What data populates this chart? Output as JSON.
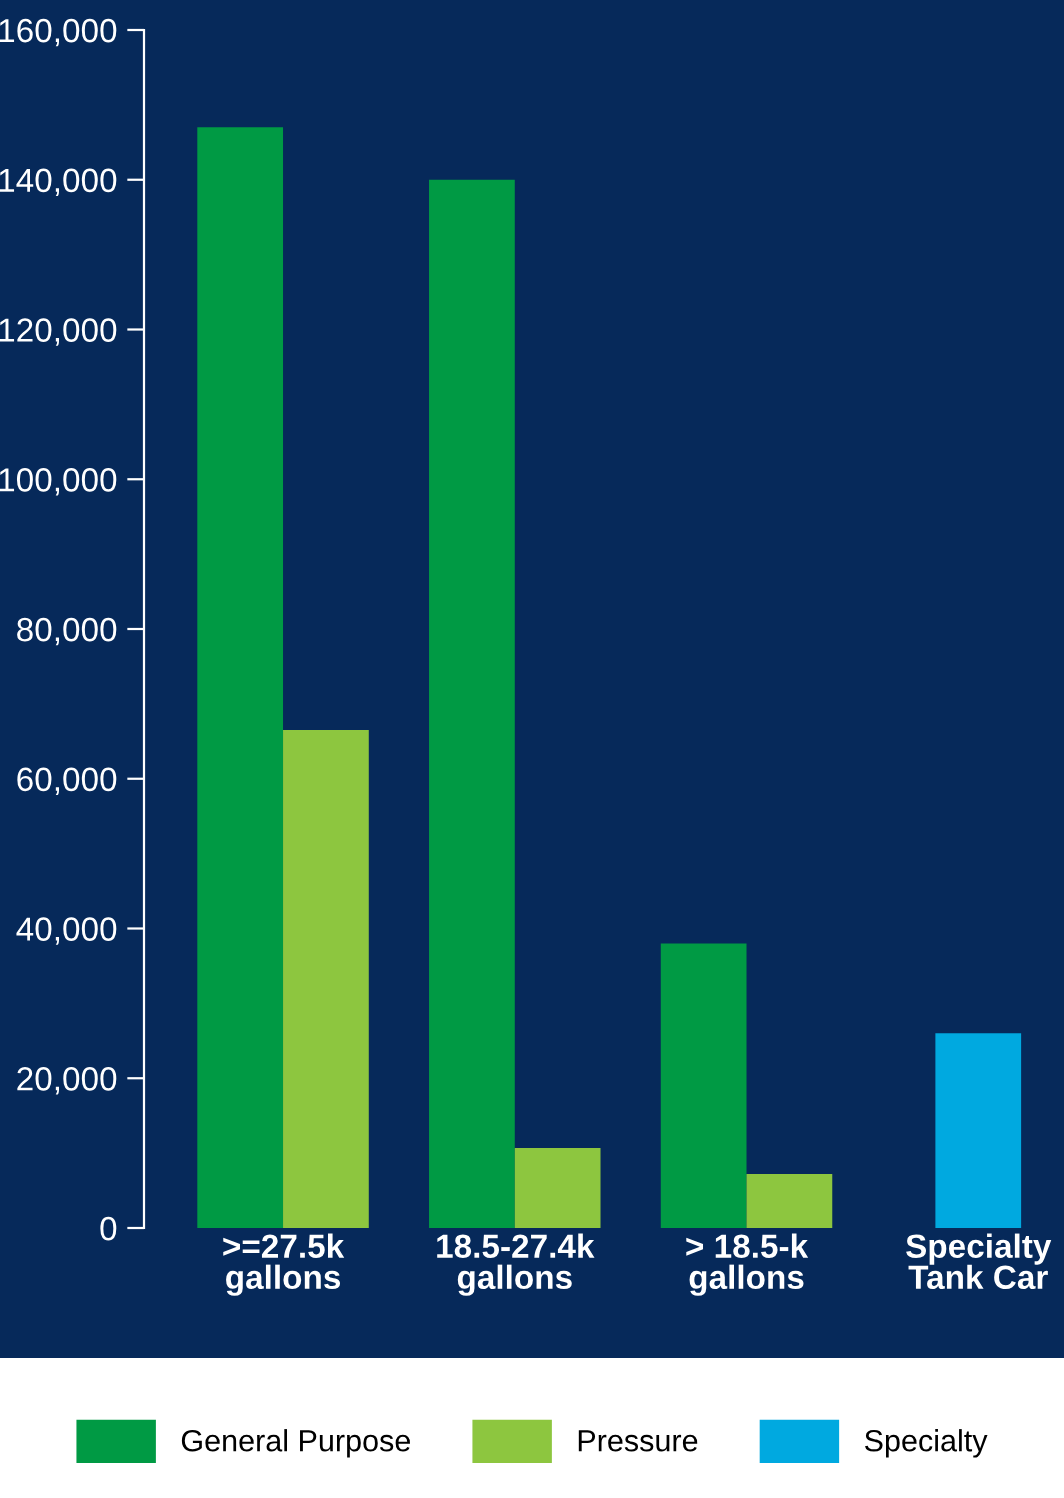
{
  "chart_data": {
    "type": "bar",
    "categories": [
      ">=27.5k\ngallons",
      "18.5-27.4k\ngallons",
      "> 18.5-k\ngallons",
      "Specialty\nTank Car"
    ],
    "series": [
      {
        "name": "General Purpose",
        "color": "#009a44",
        "values": [
          147000,
          140000,
          38000,
          null
        ]
      },
      {
        "name": "Pressure",
        "color": "#8dc63f",
        "values": [
          66500,
          10700,
          7200,
          null
        ]
      },
      {
        "name": "Specialty",
        "color": "#00a9e0",
        "values": [
          null,
          null,
          null,
          26000
        ]
      }
    ],
    "ylim": [
      0,
      160000
    ],
    "yticks": [
      {
        "value": 0,
        "label": "0"
      },
      {
        "value": 20000,
        "label": "20,000"
      },
      {
        "value": 40000,
        "label": "40,000"
      },
      {
        "value": 60000,
        "label": "60,000"
      },
      {
        "value": 80000,
        "label": "80,000"
      },
      {
        "value": 100000,
        "label": "100,000"
      },
      {
        "value": 120000,
        "label": "120,000"
      },
      {
        "value": 140000,
        "label": "140,000"
      },
      {
        "value": 160000,
        "label": "160,000"
      }
    ],
    "grid": false,
    "legend": "bottom"
  }
}
